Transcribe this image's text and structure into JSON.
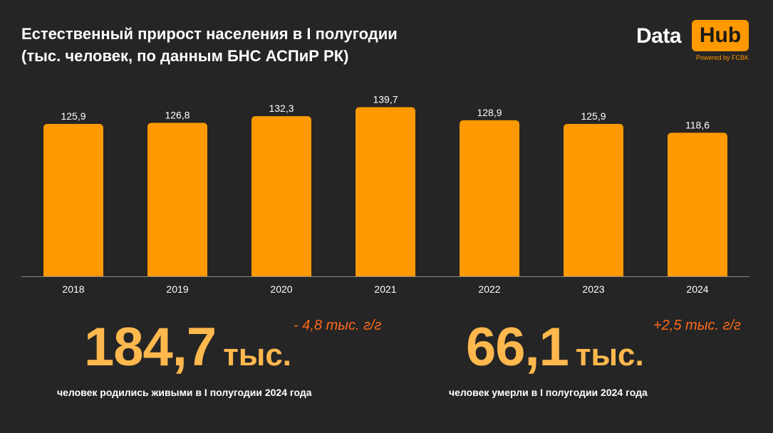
{
  "title_lines": [
    "Естественный прирост населения в I полугодии",
    "(тыс. человек, по данным БНС АСПиР РК)"
  ],
  "logo": {
    "word1": "Data",
    "word2": "Hub",
    "tagline": "Powered by FCBK"
  },
  "colors": {
    "background": "#252525",
    "bar": "#ff9900",
    "accent_big": "#ffb84d",
    "delta": "#ff6a1a"
  },
  "chart_data": {
    "type": "bar",
    "categories": [
      "2018",
      "2019",
      "2020",
      "2021",
      "2022",
      "2023",
      "2024"
    ],
    "values": [
      125.9,
      126.8,
      132.3,
      139.7,
      128.9,
      125.9,
      118.6
    ],
    "data_labels": [
      "125,9",
      "126,8",
      "132,3",
      "139,7",
      "128,9",
      "125,9",
      "118,6"
    ],
    "title": "Естественный прирост населения в I полугодии (тыс. человек, по данным БНС АСПиР РК)",
    "ylim": [
      0,
      140
    ],
    "grid": false,
    "legend": "none"
  },
  "stats": {
    "births": {
      "value": "184,7",
      "unit": "тыс.",
      "delta": "- 4,8 тыс. г/г",
      "caption": "человек родились живыми в I полугодии 2024 года"
    },
    "deaths": {
      "value": "66,1",
      "unit": "тыс.",
      "delta": "+2,5 тыс. г/г",
      "caption": "человек умерли в I полугодии 2024 года"
    }
  }
}
